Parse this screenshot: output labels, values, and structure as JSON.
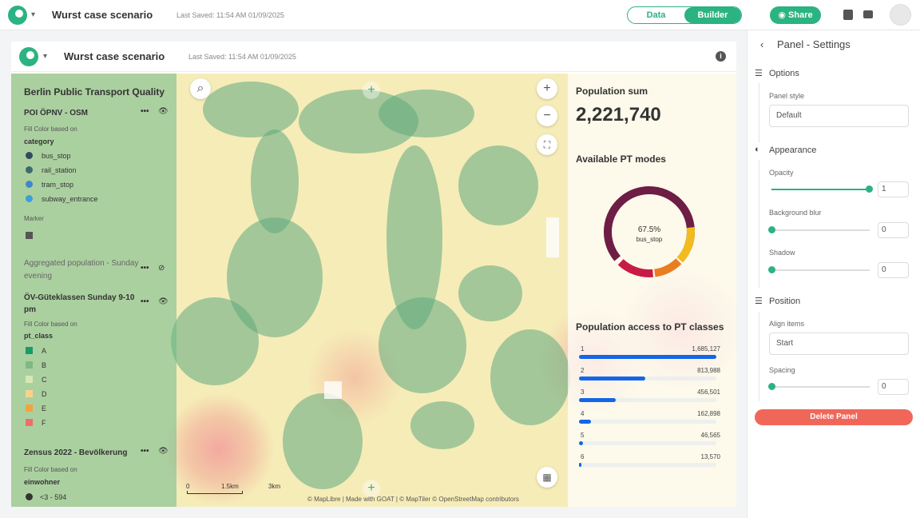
{
  "topbar": {
    "project_title": "Wurst case scenario",
    "last_saved": "Last Saved: 11:54 AM 01/09/2025",
    "tab_data": "Data",
    "tab_builder": "Builder",
    "share_label": "Share"
  },
  "canvas_header": {
    "project_title": "Wurst case scenario",
    "last_saved": "Last Saved: 11:54 AM 01/09/2025"
  },
  "legend": {
    "title": "Berlin Public Transport Quality",
    "layer1": {
      "name": "POI ÖPNV - OSM",
      "fill_label": "Fill Color based on",
      "field": "category",
      "items": [
        {
          "label": "bus_stop",
          "color": "#35495e"
        },
        {
          "label": "rail_station",
          "color": "#3d6b6e"
        },
        {
          "label": "tram_stop",
          "color": "#3c88c9"
        },
        {
          "label": "subway_entrance",
          "color": "#3aa0d8"
        }
      ],
      "marker_label": "Marker"
    },
    "layer2": {
      "name": "Aggregated population - Sunday evening"
    },
    "layer3": {
      "name": "ÖV-Güteklassen Sunday 9-10 pm",
      "fill_label": "Fill Color based on",
      "field": "pt_class",
      "items": [
        {
          "label": "A",
          "color": "#199b6a"
        },
        {
          "label": "B",
          "color": "#7dba86"
        },
        {
          "label": "C",
          "color": "#d8e6b6"
        },
        {
          "label": "D",
          "color": "#f6d48a"
        },
        {
          "label": "E",
          "color": "#f2a341"
        },
        {
          "label": "F",
          "color": "#ef6d6a"
        }
      ]
    },
    "layer4": {
      "name": "Zensus 2022 - Bevölkerung",
      "fill_label": "Fill Color based on",
      "field": "einwohner",
      "first_item": "<3 - 594"
    }
  },
  "stats": {
    "pop_title": "Population sum",
    "pop_value": "2,221,740",
    "modes_title": "Available PT modes",
    "donut_pct": "67.5%",
    "donut_label": "bus_stop",
    "access_title": "Population access to PT classes",
    "access": [
      {
        "cls": "1",
        "value": "1,685,127",
        "frac": 1.0
      },
      {
        "cls": "2",
        "value": "813,988",
        "frac": 0.48
      },
      {
        "cls": "3",
        "value": "456,501",
        "frac": 0.27
      },
      {
        "cls": "4",
        "value": "162,898",
        "frac": 0.09
      },
      {
        "cls": "5",
        "value": "46,565",
        "frac": 0.03
      },
      {
        "cls": "6",
        "value": "13,570",
        "frac": 0.01
      }
    ]
  },
  "map": {
    "scale": [
      "0",
      "1.5km",
      "3km"
    ],
    "attribution": "© MapLibre | Made with GOAT | © MapTiler © OpenStreetMap contributors"
  },
  "settings": {
    "title": "Panel - Settings",
    "options": "Options",
    "panel_style_label": "Panel style",
    "panel_style_value": "Default",
    "appearance": "Appearance",
    "opacity_label": "Opacity",
    "opacity_value": "1",
    "blur_label": "Background blur",
    "blur_value": "0",
    "shadow_label": "Shadow",
    "shadow_value": "0",
    "position": "Position",
    "align_label": "Align items",
    "align_value": "Start",
    "spacing_label": "Spacing",
    "spacing_value": "0",
    "delete_label": "Delete Panel"
  }
}
